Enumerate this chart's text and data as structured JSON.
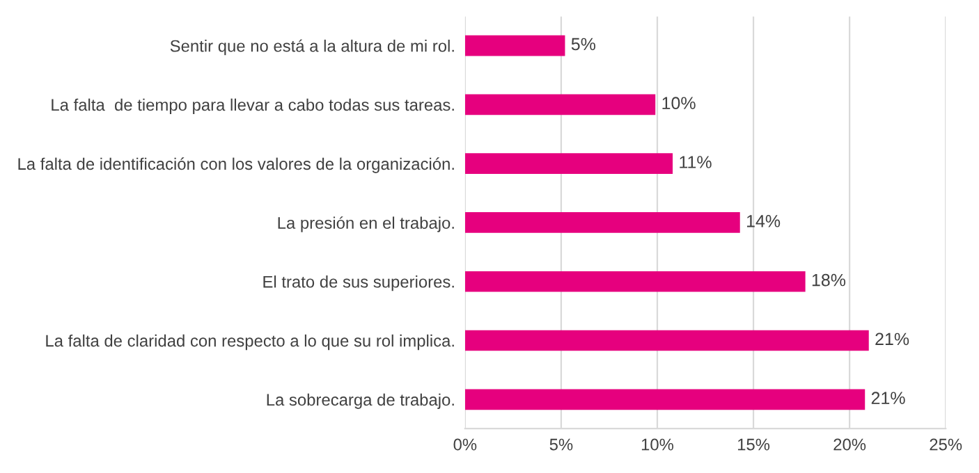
{
  "chart_data": {
    "type": "bar",
    "orientation": "horizontal",
    "categories": [
      "Sentir que no está a la altura de mi rol.",
      "La falta  de tiempo para llevar a cabo todas sus tareas.",
      "La falta de identificación con los valores de la organización.",
      "La presión en el trabajo.",
      "El trato de sus superiores.",
      "La falta de claridad con respecto a lo que su rol implica.",
      "La sobrecarga de trabajo."
    ],
    "values": [
      5.2,
      9.9,
      10.8,
      14.3,
      17.7,
      21.0,
      20.8
    ],
    "value_labels": [
      "5%",
      "10%",
      "11%",
      "14%",
      "18%",
      "21%",
      "21%"
    ],
    "color": "#e6007e",
    "xlim": [
      0,
      25
    ],
    "xticks": [
      {
        "value": 0,
        "label": "0%"
      },
      {
        "value": 5,
        "label": "5%"
      },
      {
        "value": 10,
        "label": "10%"
      },
      {
        "value": 15,
        "label": "15%"
      },
      {
        "value": 20,
        "label": "20%"
      },
      {
        "value": 25,
        "label": "25%"
      }
    ],
    "grid": "x",
    "legend": false
  }
}
